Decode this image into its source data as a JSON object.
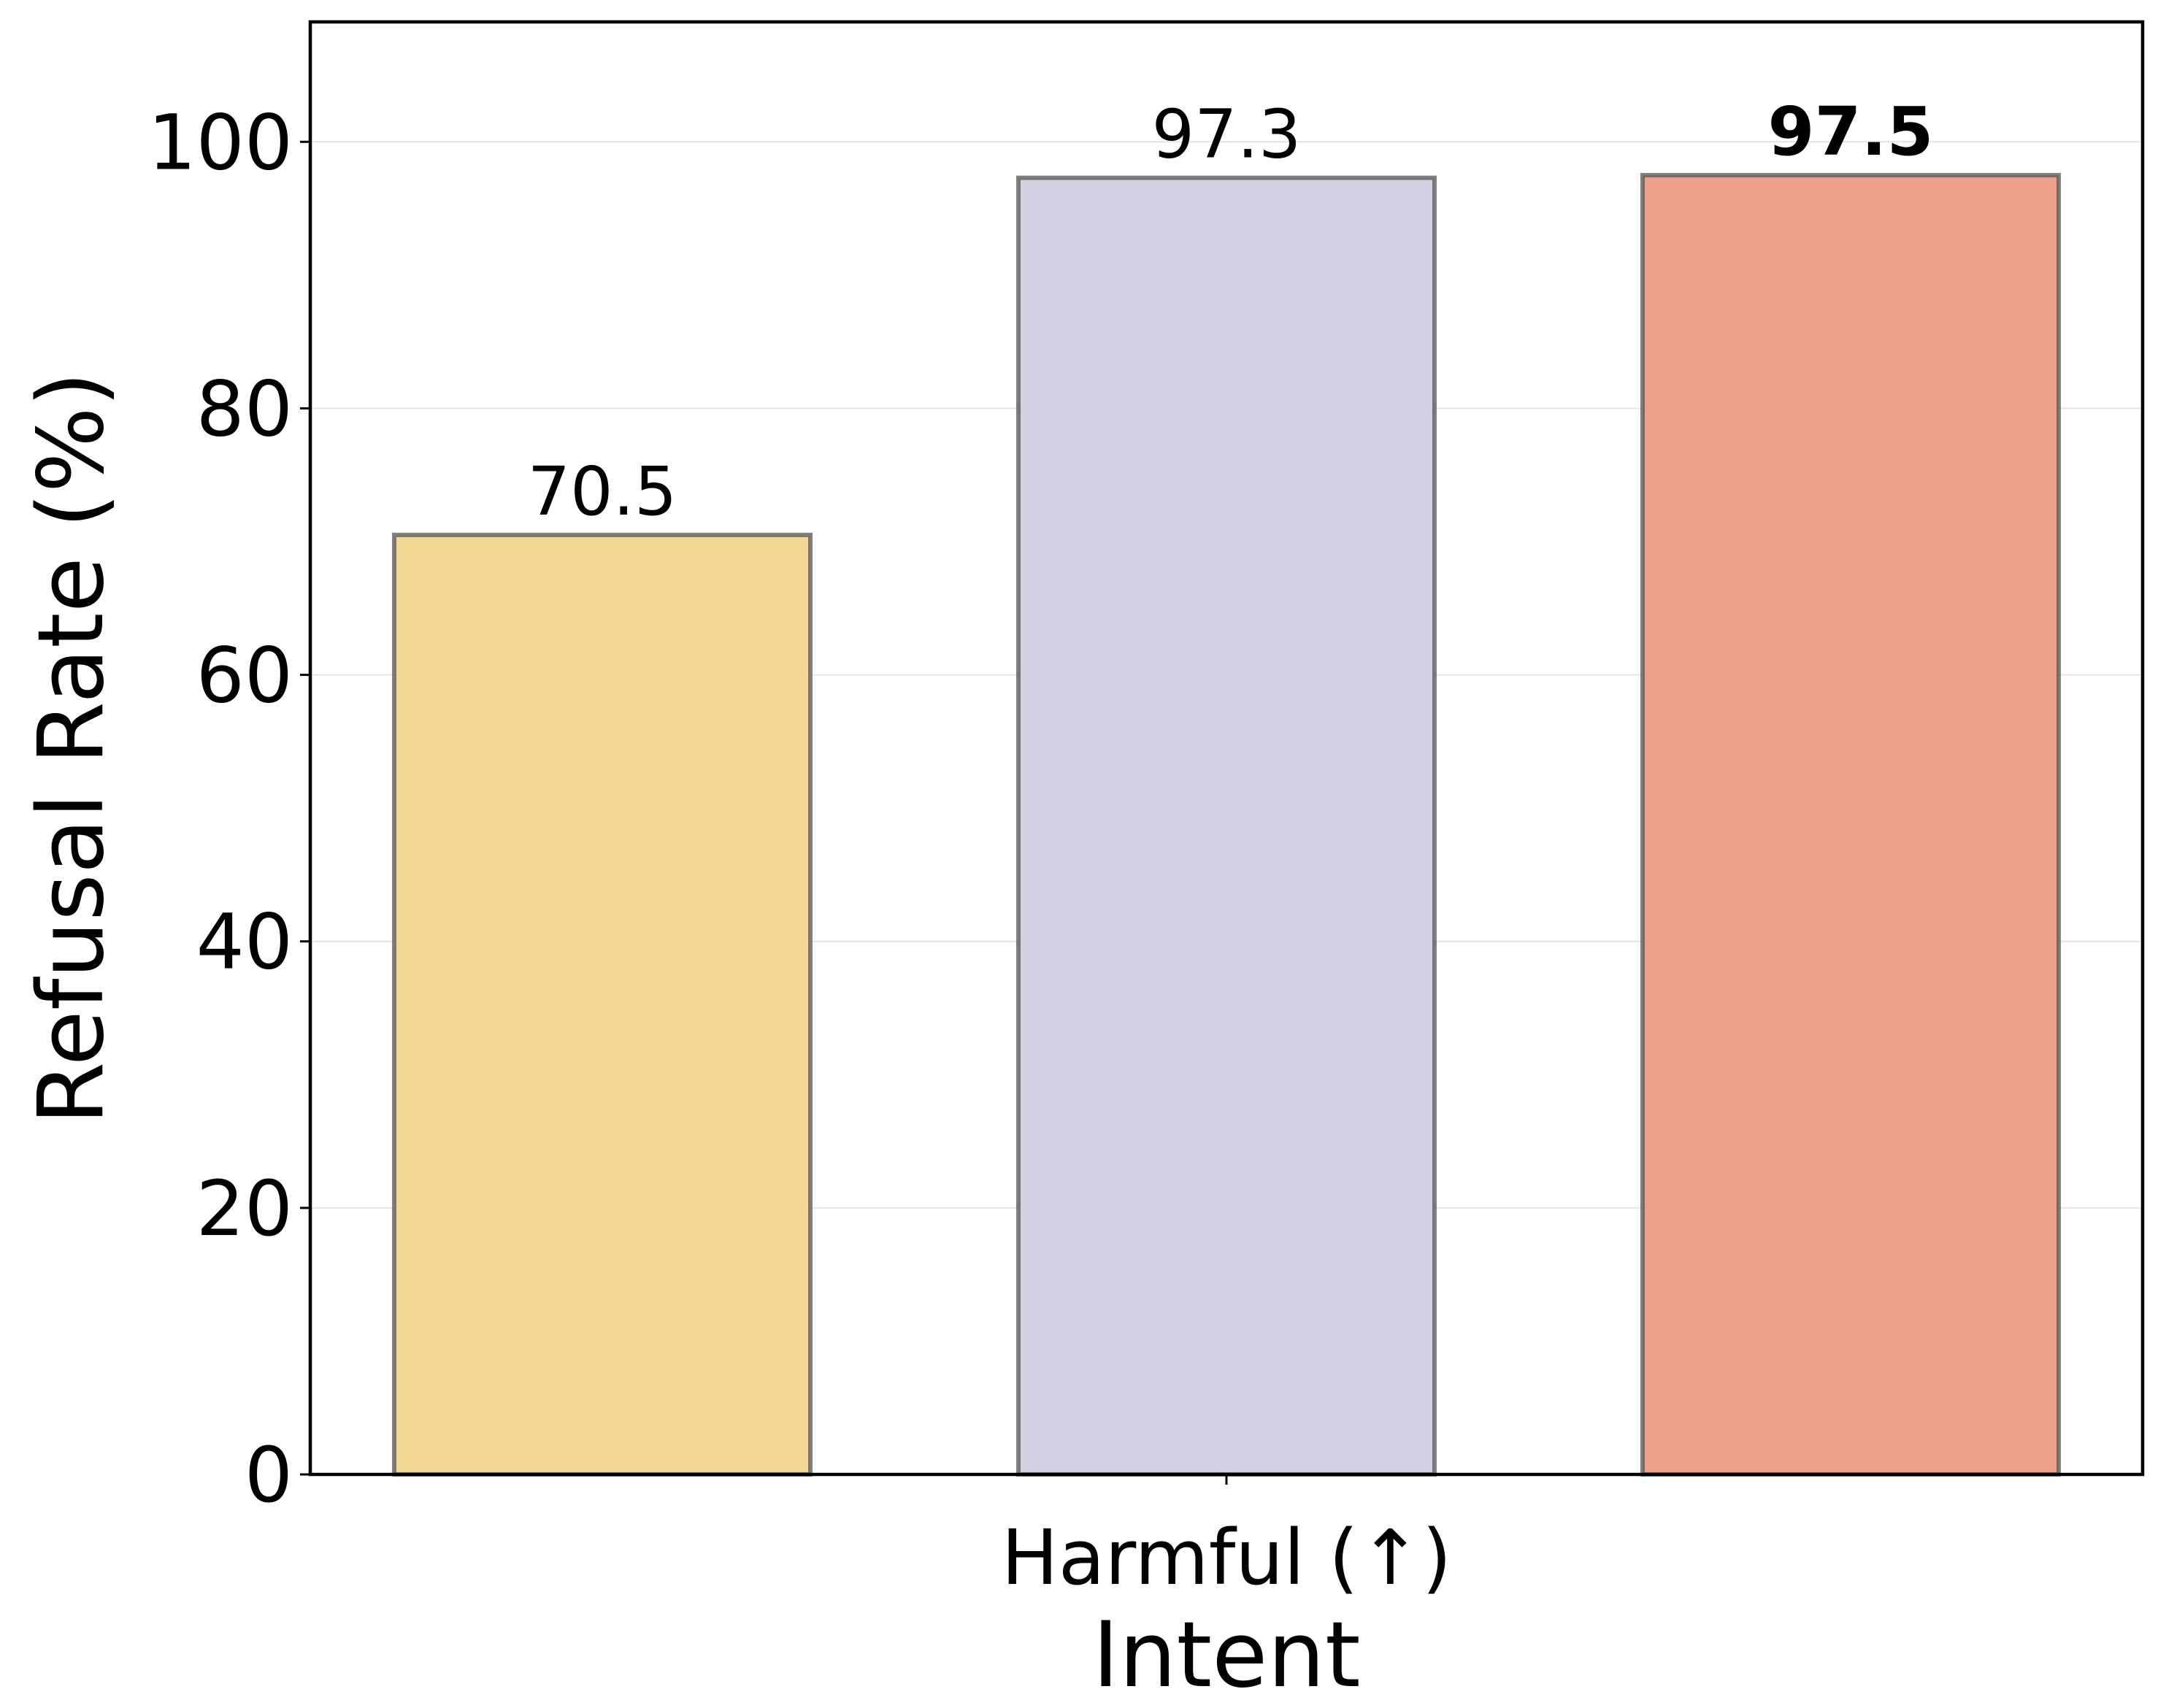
{
  "chart_data": {
    "type": "bar",
    "categories": [
      "Harmful (↑)"
    ],
    "series": [
      {
        "values": [
          70.5
        ],
        "color": "#f2d896",
        "label_bold": false
      },
      {
        "values": [
          97.3
        ],
        "color": "#d3d1e3",
        "label_bold": false
      },
      {
        "values": [
          97.5
        ],
        "color": "#ee9f8c",
        "label_bold": true
      }
    ],
    "data_labels": [
      "70.5",
      "97.3",
      "97.5"
    ],
    "xlabel": "Intent",
    "ylabel": "Refusal Rate (%)",
    "ylim": [
      0,
      109
    ],
    "yticks": [
      0,
      20,
      40,
      60,
      80,
      100
    ],
    "ytick_labels": [
      "0",
      "20",
      "40",
      "60",
      "80",
      "100"
    ],
    "grid": "horizontal",
    "legend": "none"
  }
}
